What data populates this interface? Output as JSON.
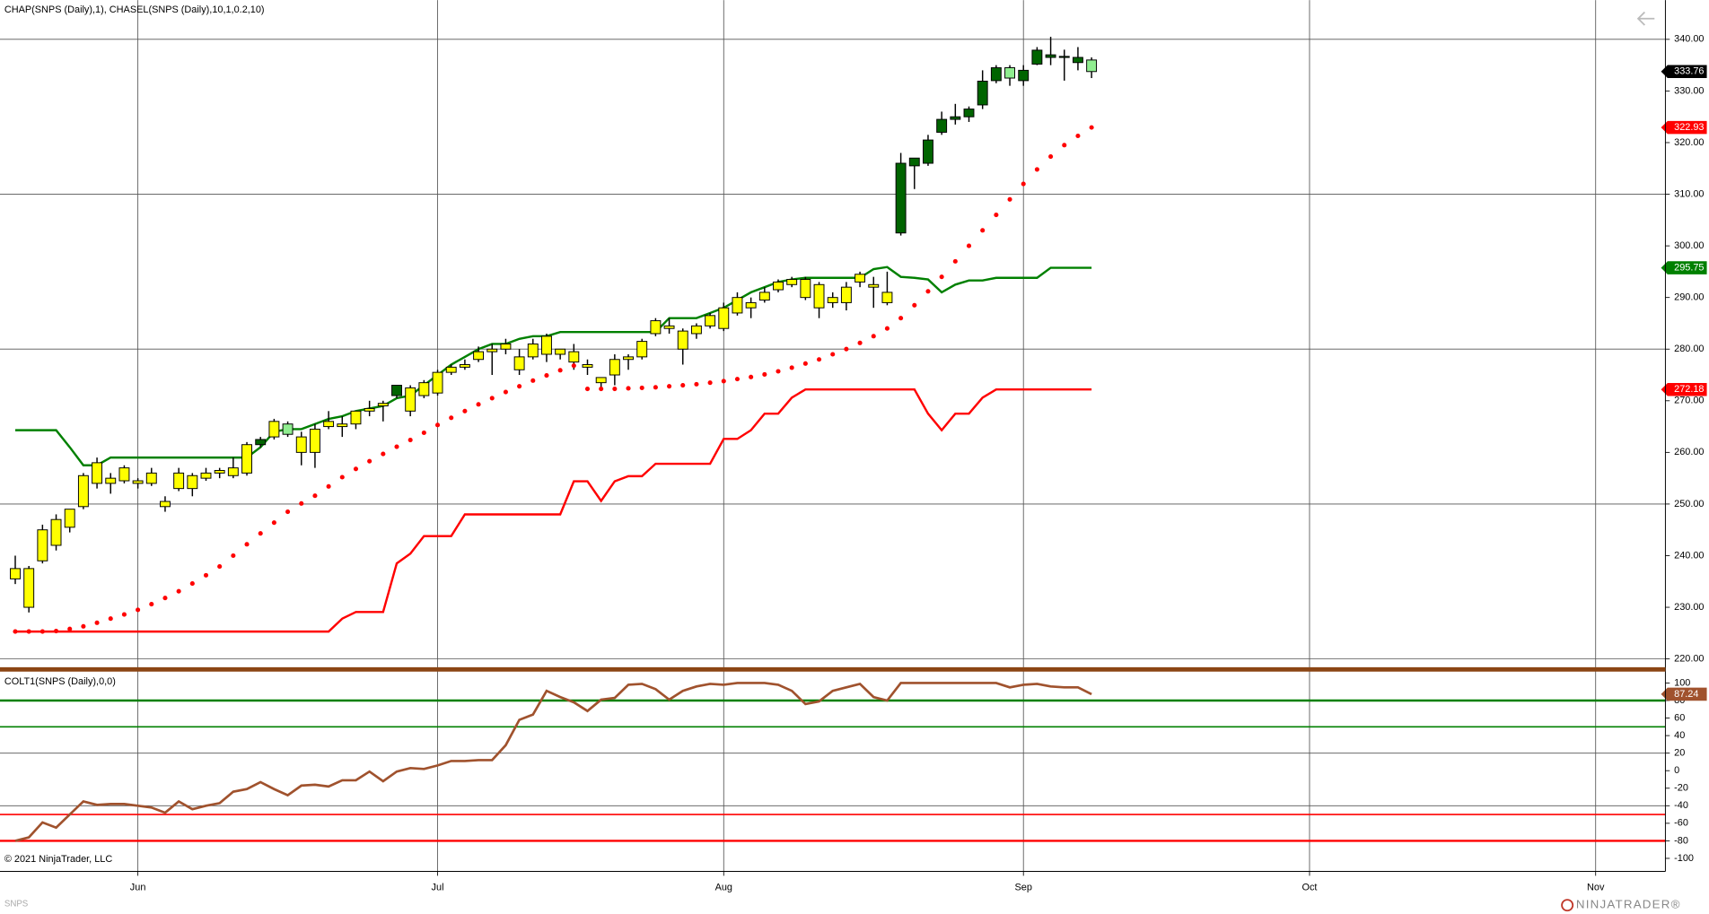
{
  "chart_data": [
    {
      "type": "candlestick",
      "title": "CHAP(SNPS (Daily),1), CHASEL(SNPS (Daily),10,1,0.2,10)",
      "open": [
        235.5,
        237.5,
        239,
        242,
        245.5,
        249.5,
        254,
        254,
        254.5,
        254,
        254,
        249.5,
        253,
        253,
        255,
        256,
        255.5,
        256,
        261.5,
        263,
        263.5,
        260,
        260,
        265,
        265,
        265.5,
        268,
        269,
        271,
        268,
        271,
        271.5,
        275.5,
        276.5,
        278,
        279.5,
        280,
        276,
        278.5,
        279,
        279,
        277.5,
        277,
        273.5,
        275,
        278,
        278.5,
        283,
        284,
        280,
        283,
        284.5,
        284,
        287,
        288,
        289.5,
        291.5,
        292.5,
        290,
        288,
        289,
        289,
        293,
        292,
        289,
        302.5,
        315.5,
        316,
        322,
        324.5,
        325,
        327.3,
        332,
        332.5,
        332,
        335.2,
        336.5,
        336.5,
        335.5,
        336
      ],
      "high": [
        240,
        238,
        246,
        248,
        249,
        256,
        259,
        256,
        257.5,
        255,
        257,
        251.5,
        257,
        256,
        257,
        257,
        259,
        262,
        263,
        266.5,
        266,
        264,
        265.5,
        268,
        267,
        268,
        270,
        270,
        273,
        273,
        274,
        276,
        277,
        278,
        280.5,
        281,
        282,
        280,
        282,
        283,
        280,
        281,
        278,
        274.5,
        279,
        279,
        282,
        286,
        286,
        284,
        285,
        287,
        289,
        291,
        290,
        292,
        293.5,
        294,
        294,
        293,
        291,
        293,
        295,
        294,
        295,
        318,
        317,
        321.5,
        326,
        327.5,
        327,
        334,
        335,
        335,
        335,
        338.5,
        340.5,
        338,
        338.5,
        336.5
      ],
      "low": [
        234.5,
        229,
        238.5,
        241,
        244.5,
        249,
        253,
        252,
        254,
        253,
        253.5,
        248.5,
        252.5,
        251.5,
        254.5,
        255,
        255,
        255.5,
        261,
        262.5,
        263,
        257.5,
        257,
        264.5,
        263,
        264.5,
        267,
        266,
        270.5,
        267,
        270.5,
        271,
        275,
        276,
        277.5,
        275,
        279,
        275,
        278,
        277.5,
        278,
        276,
        275,
        272.5,
        273,
        276,
        278,
        282.5,
        283,
        277,
        282,
        284,
        283.5,
        286.5,
        286,
        289,
        291,
        292,
        289.5,
        286,
        288,
        287.5,
        292,
        288,
        288.5,
        302,
        311,
        315.5,
        321.5,
        323.5,
        324,
        326.5,
        331.5,
        331,
        331,
        335,
        335,
        332,
        334,
        332.5
      ],
      "close": [
        237.5,
        230,
        245,
        247,
        249,
        255.5,
        258,
        255,
        257,
        254.5,
        256,
        250.5,
        256,
        255.5,
        256,
        256.5,
        257,
        261.5,
        262.5,
        266,
        265.5,
        263,
        264.5,
        266,
        265.5,
        268,
        268.5,
        269.5,
        273,
        272.5,
        273.5,
        275.5,
        276.5,
        277,
        279.5,
        280,
        281,
        278.5,
        281,
        282.5,
        280,
        279.5,
        276.5,
        274.5,
        278,
        278.5,
        281.5,
        285.5,
        284.5,
        283.5,
        284.5,
        286.5,
        288,
        290,
        289,
        291,
        293,
        293.5,
        293.5,
        292.5,
        290,
        292,
        294.5,
        292.5,
        291,
        316,
        317,
        320.5,
        324.5,
        325,
        326.5,
        331.9,
        334.5,
        334.5,
        334,
        337.9,
        337,
        336.7,
        336.5,
        333.76
      ],
      "candle_colors": [
        "#ffff00",
        "#ffff00",
        "#ffff00",
        "#ffff00",
        "#ffff00",
        "#ffff00",
        "#ffff00",
        "#ffff00",
        "#ffff00",
        "#ffff00",
        "#ffff00",
        "#ffff00",
        "#ffff00",
        "#ffff00",
        "#ffff00",
        "#ffff00",
        "#ffff00",
        "#ffff00",
        "#006400",
        "#ffff00",
        "#90ee90",
        "#ffff00",
        "#ffff00",
        "#ffff00",
        "#ffff00",
        "#ffff00",
        "#ffff00",
        "#ffff00",
        "#006400",
        "#ffff00",
        "#ffff00",
        "#ffff00",
        "#ffff00",
        "#ffff00",
        "#ffff00",
        "#ffff00",
        "#ffff00",
        "#ffff00",
        "#ffff00",
        "#ffff00",
        "#ffff00",
        "#ffff00",
        "#ffff00",
        "#ffff00",
        "#ffff00",
        "#ffff00",
        "#ffff00",
        "#ffff00",
        "#ffff00",
        "#ffff00",
        "#ffff00",
        "#ffff00",
        "#ffff00",
        "#ffff00",
        "#ffff00",
        "#ffff00",
        "#ffff00",
        "#ffff00",
        "#ffff00",
        "#ffff00",
        "#ffff00",
        "#ffff00",
        "#ffff00",
        "#ffff00",
        "#ffff00",
        "#006400",
        "#006400",
        "#006400",
        "#006400",
        "#006400",
        "#006400",
        "#006400",
        "#006400",
        "#90ee90",
        "#006400",
        "#006400",
        "#006400",
        "#006400",
        "#006400",
        "#90ee90"
      ],
      "price_marker_color": "#000000",
      "lines": [
        {
          "color": "#008000",
          "values": [
            264.3,
            264.3,
            264.3,
            264.3,
            261,
            257.5,
            257.5,
            259,
            259,
            259,
            259,
            259,
            259,
            259,
            259,
            259,
            259,
            259,
            261,
            264,
            264.5,
            264.5,
            265.5,
            266.5,
            267,
            268,
            268.5,
            269,
            270.5,
            271,
            273,
            275,
            277,
            278.5,
            280,
            281,
            281,
            282,
            282.5,
            282.5,
            283.3,
            283.3,
            283.3,
            283.3,
            283.3,
            283.3,
            283.3,
            283.3,
            286,
            286,
            286,
            287,
            288,
            289.5,
            291,
            292,
            293,
            293.5,
            293.8,
            293.8,
            293.8,
            293.8,
            293.8,
            295.5,
            295.9,
            294,
            293.8,
            293.5,
            291,
            292.5,
            293.3,
            293.3,
            293.8,
            293.8,
            293.8,
            293.8,
            295.75,
            295.75,
            295.75,
            295.75
          ]
        },
        {
          "color": "#ff0000",
          "values": [
            225.3,
            225.3,
            225.3,
            225.3,
            225.3,
            225.3,
            225.3,
            225.3,
            225.3,
            225.3,
            225.3,
            225.3,
            225.3,
            225.3,
            225.3,
            225.3,
            225.3,
            225.3,
            225.3,
            225.3,
            225.3,
            225.3,
            225.3,
            225.3,
            227.8,
            229.1,
            229.1,
            229.1,
            238.5,
            240.4,
            243.8,
            243.8,
            243.8,
            248,
            248,
            248,
            248,
            248,
            248,
            248,
            248,
            254.4,
            254.4,
            250.6,
            254.4,
            255.4,
            255.4,
            257.8,
            257.8,
            257.8,
            257.8,
            257.8,
            262.6,
            262.6,
            264.3,
            267.5,
            267.5,
            270.6,
            272.18,
            272.18,
            272.18,
            272.18,
            272.18,
            272.18,
            272.18,
            272.18,
            272.18,
            267.5,
            264.3,
            267.5,
            267.5,
            270.6,
            272.18,
            272.18,
            272.18,
            272.18,
            272.18,
            272.18,
            272.18,
            272.18
          ]
        }
      ],
      "dots": {
        "color": "#ff0000",
        "values": [
          225.3,
          225.3,
          225.3,
          225.4,
          225.8,
          226.3,
          227,
          227.8,
          228.6,
          229.5,
          230.6,
          231.8,
          233.1,
          234.6,
          236.2,
          237.9,
          240,
          242.2,
          244.3,
          246.4,
          248.5,
          250.1,
          251.6,
          253.4,
          255.2,
          256.8,
          258.3,
          259.7,
          261.1,
          262.4,
          263.8,
          265.3,
          266.7,
          268,
          269.3,
          270.5,
          271.7,
          272.8,
          273.9,
          274.9,
          275.9,
          276.8,
          272.3,
          272.3,
          272.3,
          272.4,
          272.5,
          272.6,
          272.8,
          273,
          273.2,
          273.5,
          273.8,
          274.2,
          274.6,
          275.1,
          275.7,
          276.4,
          277.2,
          278,
          279,
          280,
          281.2,
          282.5,
          284,
          286,
          288.5,
          291.2,
          294,
          297,
          300,
          303,
          306,
          309,
          312,
          314.8,
          317.3,
          319.5,
          321.3,
          322.93
        ]
      },
      "ylim": [
        218.5,
        347.6
      ],
      "yticks": [
        {
          "value": 340,
          "label": "340.00"
        },
        {
          "value": 330,
          "label": "330.00"
        },
        {
          "value": 320,
          "label": "320.00"
        },
        {
          "value": 310,
          "label": "310.00"
        },
        {
          "value": 300,
          "label": "300.00"
        },
        {
          "value": 290,
          "label": "290.00"
        },
        {
          "value": 280,
          "label": "280.00"
        },
        {
          "value": 270,
          "label": "270.00"
        },
        {
          "value": 260,
          "label": "260.00"
        },
        {
          "value": 250,
          "label": "250.00"
        },
        {
          "value": 240,
          "label": "240.00"
        },
        {
          "value": 230,
          "label": "230.00"
        },
        {
          "value": 220,
          "label": "220.00"
        }
      ],
      "grid_lines": [
        340,
        310,
        280,
        250,
        220
      ]
    },
    {
      "type": "line",
      "title": "COLT1(SNPS (Daily),0,0)",
      "series": [
        {
          "color": "#a0522d",
          "values": [
            -80,
            -76,
            -59,
            -65,
            -50,
            -35,
            -39,
            -38,
            -38,
            -40,
            -42,
            -48,
            -35,
            -44,
            -40,
            -37,
            -24,
            -21,
            -13,
            -21,
            -28,
            -17,
            -16,
            -18,
            -11,
            -11,
            -1,
            -12,
            -1,
            3,
            2,
            6,
            11,
            11,
            12,
            12,
            29,
            58,
            64,
            91,
            84,
            78,
            68,
            81,
            83,
            98,
            99,
            93,
            81,
            91,
            96,
            99,
            98,
            100,
            100,
            100,
            98,
            91,
            76,
            79,
            91,
            95,
            99,
            84,
            80,
            100,
            100,
            100,
            100,
            100,
            100,
            100,
            100,
            95,
            98,
            99,
            96,
            95,
            95,
            87.24
          ]
        }
      ],
      "levels": [
        {
          "value": 80,
          "color": "#008000"
        },
        {
          "value": 50,
          "color": "#008000"
        },
        {
          "value": -50,
          "color": "#ff0000"
        },
        {
          "value": -80,
          "color": "#ff0000"
        }
      ],
      "ylim": [
        -114.9,
        112.4
      ],
      "yticks": [
        100,
        80,
        60,
        40,
        20,
        0,
        -20,
        -40,
        -60,
        -80,
        -100
      ],
      "grid_lines": [
        20,
        -40
      ],
      "xlim": [
        -1.12,
        121.12
      ],
      "xticks": [
        {
          "value": 9,
          "label": "Jun"
        },
        {
          "value": 31,
          "label": "Jul"
        },
        {
          "value": 52,
          "label": "Aug"
        },
        {
          "value": 74,
          "label": "Sep"
        },
        {
          "value": 95,
          "label": "Oct"
        },
        {
          "value": 116,
          "label": "Nov"
        }
      ]
    }
  ],
  "copyright": "© 2021 NinjaTrader, LLC",
  "symbol": "SNPS",
  "brand": "NINJATRADER®"
}
